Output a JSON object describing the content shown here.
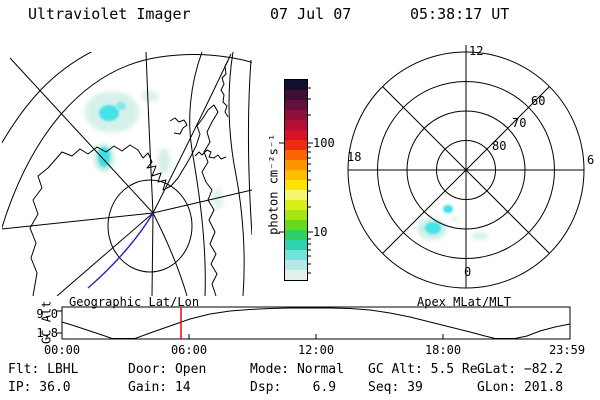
{
  "header": {
    "title": "Ultraviolet Imager",
    "date": "07 Jul 07",
    "time": "05:38:17 UT"
  },
  "map_panel": {
    "title": "Geographic Lat/Lon"
  },
  "polar_panel": {
    "title": "Apex MLat/MLT",
    "mlt_top": "12",
    "mlt_left": "18",
    "mlt_right": "6",
    "mlt_bottom": "0",
    "mlat_rings": [
      "60",
      "70",
      "80"
    ]
  },
  "colorbar": {
    "label": "photon cm⁻²s⁻¹",
    "tick_high": "100",
    "tick_low": "10",
    "colors": [
      "#12102f",
      "#400e34",
      "#670f3c",
      "#8e0f3e",
      "#b30f35",
      "#d61226",
      "#ef2a12",
      "#fb6604",
      "#ff9300",
      "#ffbc00",
      "#fce400",
      "#f5f56e",
      "#d8ee1a",
      "#a4e614",
      "#66da16",
      "#30cf66",
      "#2fd2af",
      "#72e0dc",
      "#b6e9e6",
      "#e2f0ee"
    ]
  },
  "alt_panel": {
    "ylabel": "GC Alt",
    "ytick_top": "9.0",
    "ytick_bottom": "1.8",
    "xticks": [
      "00:00",
      "06:00",
      "12:00",
      "18:00",
      "23:59"
    ]
  },
  "status": {
    "row1": [
      "Flt: LBHL",
      "Door: Open",
      "Mode: Normal",
      "GC Alt: 5.5 Re",
      "GLat: −82.2"
    ],
    "row2": [
      "IP: 36.0",
      "Gain: 14",
      "Dsp:    6.9",
      "Seq: 39",
      "GLon: 201.8"
    ]
  },
  "colors": {
    "track_blue": "#2323cc",
    "marker_red": "#ff0000",
    "emission_bright": "#45e2e6",
    "emission_pale": "#cfeee9"
  }
}
